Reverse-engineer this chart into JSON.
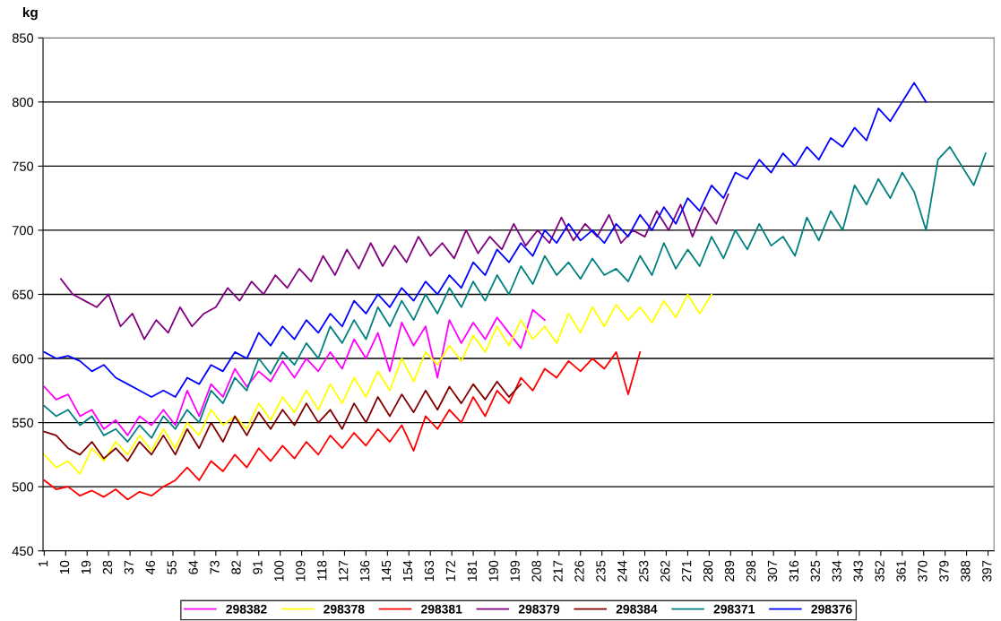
{
  "chart_data": {
    "type": "line",
    "ylabel": "kg",
    "xlim": [
      0.5,
      399.5
    ],
    "xticks": [
      1,
      10,
      19,
      28,
      37,
      46,
      55,
      64,
      73,
      82,
      91,
      100,
      109,
      118,
      127,
      136,
      145,
      154,
      163,
      172,
      181,
      190,
      199,
      208,
      217,
      226,
      235,
      244,
      253,
      262,
      271,
      280,
      289,
      298,
      307,
      316,
      325,
      334,
      343,
      352,
      361,
      370,
      379,
      388,
      397
    ],
    "ylim": [
      450,
      850
    ],
    "yticks": [
      450,
      500,
      550,
      600,
      650,
      700,
      750,
      800,
      850
    ],
    "grid": "y",
    "legend": "bottom",
    "marker": "none",
    "line_style": "solid",
    "series": [
      {
        "name": "298382",
        "color": "#ff00ff",
        "x": [
          1,
          6,
          11,
          16,
          21,
          26,
          31,
          36,
          41,
          46,
          51,
          56,
          61,
          66,
          71,
          76,
          81,
          86,
          91,
          96,
          101,
          106,
          111,
          116,
          121,
          126,
          131,
          136,
          141,
          146,
          151,
          156,
          161,
          166,
          171,
          176,
          181,
          186,
          191,
          196,
          201,
          206,
          211
        ],
        "values": [
          578,
          568,
          572,
          555,
          560,
          545,
          552,
          540,
          555,
          548,
          560,
          548,
          575,
          555,
          580,
          570,
          592,
          578,
          590,
          582,
          598,
          585,
          600,
          590,
          605,
          592,
          615,
          600,
          620,
          590,
          628,
          610,
          625,
          585,
          630,
          612,
          628,
          615,
          632,
          620,
          608,
          638,
          630
        ]
      },
      {
        "name": "298378",
        "color": "#ffff00",
        "x": [
          1,
          6,
          11,
          16,
          21,
          26,
          31,
          36,
          41,
          46,
          51,
          56,
          61,
          66,
          71,
          76,
          81,
          86,
          91,
          96,
          101,
          106,
          111,
          116,
          121,
          126,
          131,
          136,
          141,
          146,
          151,
          156,
          161,
          166,
          171,
          176,
          181,
          186,
          191,
          196,
          201,
          206,
          211,
          216,
          221,
          226,
          231,
          236,
          241,
          246,
          251,
          256,
          261,
          266,
          271,
          276,
          281
        ],
        "values": [
          525,
          515,
          520,
          510,
          530,
          520,
          535,
          525,
          540,
          528,
          545,
          530,
          550,
          540,
          560,
          548,
          555,
          545,
          565,
          552,
          570,
          558,
          575,
          560,
          580,
          565,
          585,
          570,
          590,
          575,
          600,
          582,
          605,
          595,
          610,
          598,
          618,
          605,
          625,
          610,
          630,
          615,
          625,
          612,
          635,
          620,
          640,
          625,
          642,
          630,
          640,
          628,
          645,
          632,
          650,
          635,
          650
        ]
      },
      {
        "name": "298381",
        "color": "#ff0000",
        "x": [
          1,
          6,
          11,
          16,
          21,
          26,
          31,
          36,
          41,
          46,
          51,
          56,
          61,
          66,
          71,
          76,
          81,
          86,
          91,
          96,
          101,
          106,
          111,
          116,
          121,
          126,
          131,
          136,
          141,
          146,
          151,
          156,
          161,
          166,
          171,
          176,
          181,
          186,
          191,
          196,
          201,
          206,
          211,
          216,
          221,
          226,
          231,
          236,
          241,
          246,
          251
        ],
        "values": [
          505,
          498,
          500,
          493,
          497,
          492,
          498,
          490,
          496,
          493,
          500,
          505,
          515,
          505,
          520,
          512,
          525,
          515,
          530,
          520,
          532,
          522,
          535,
          525,
          540,
          530,
          542,
          532,
          545,
          535,
          548,
          528,
          555,
          545,
          560,
          550,
          570,
          555,
          575,
          565,
          585,
          575,
          592,
          585,
          598,
          590,
          600,
          592,
          605,
          572,
          605
        ]
      },
      {
        "name": "298379",
        "color": "#800080",
        "x": [
          8,
          13,
          18,
          23,
          28,
          33,
          38,
          43,
          48,
          53,
          58,
          63,
          68,
          73,
          78,
          83,
          88,
          93,
          98,
          103,
          108,
          113,
          118,
          123,
          128,
          133,
          138,
          143,
          148,
          153,
          158,
          163,
          168,
          173,
          178,
          183,
          188,
          193,
          198,
          203,
          208,
          213,
          218,
          223,
          228,
          233,
          238,
          243,
          248,
          253,
          258,
          263,
          268,
          273,
          278,
          283,
          288
        ],
        "values": [
          662,
          650,
          645,
          640,
          650,
          625,
          635,
          615,
          630,
          620,
          640,
          625,
          635,
          640,
          655,
          645,
          660,
          650,
          665,
          655,
          670,
          660,
          680,
          665,
          685,
          670,
          690,
          672,
          688,
          675,
          695,
          680,
          690,
          678,
          700,
          682,
          695,
          685,
          705,
          688,
          700,
          690,
          710,
          692,
          705,
          695,
          712,
          690,
          700,
          695,
          715,
          700,
          720,
          695,
          718,
          705,
          728
        ]
      },
      {
        "name": "298384",
        "color": "#800000",
        "x": [
          1,
          6,
          11,
          16,
          21,
          26,
          31,
          36,
          41,
          46,
          51,
          56,
          61,
          66,
          71,
          76,
          81,
          86,
          91,
          96,
          101,
          106,
          111,
          116,
          121,
          126,
          131,
          136,
          141,
          146,
          151,
          156,
          161,
          166,
          171,
          176,
          181,
          186,
          191,
          196,
          201
        ],
        "values": [
          543,
          540,
          530,
          525,
          535,
          522,
          530,
          520,
          535,
          525,
          540,
          525,
          545,
          530,
          550,
          535,
          555,
          540,
          558,
          545,
          560,
          548,
          565,
          550,
          560,
          545,
          565,
          550,
          570,
          555,
          572,
          558,
          575,
          560,
          578,
          565,
          580,
          568,
          582,
          570,
          580
        ]
      },
      {
        "name": "298371",
        "color": "#008080",
        "x": [
          1,
          6,
          11,
          16,
          21,
          26,
          31,
          36,
          41,
          46,
          51,
          56,
          61,
          66,
          71,
          76,
          81,
          86,
          91,
          96,
          101,
          106,
          111,
          116,
          121,
          126,
          131,
          136,
          141,
          146,
          151,
          156,
          161,
          166,
          171,
          176,
          181,
          186,
          191,
          196,
          201,
          206,
          211,
          216,
          221,
          226,
          231,
          236,
          241,
          246,
          251,
          256,
          261,
          266,
          271,
          276,
          281,
          286,
          291,
          296,
          301,
          306,
          311,
          316,
          321,
          326,
          331,
          336,
          341,
          346,
          351,
          356,
          361,
          366,
          371,
          376,
          381,
          386,
          391,
          396
        ],
        "values": [
          563,
          555,
          560,
          548,
          555,
          540,
          545,
          535,
          548,
          538,
          555,
          545,
          560,
          550,
          575,
          565,
          585,
          575,
          600,
          588,
          605,
          595,
          612,
          600,
          625,
          612,
          630,
          615,
          640,
          625,
          645,
          630,
          650,
          635,
          655,
          640,
          660,
          645,
          665,
          650,
          672,
          658,
          680,
          665,
          675,
          662,
          678,
          665,
          670,
          660,
          680,
          665,
          690,
          670,
          685,
          672,
          695,
          678,
          700,
          685,
          705,
          688,
          695,
          680,
          710,
          692,
          715,
          700,
          735,
          720,
          740,
          725,
          745,
          730,
          700,
          755,
          765,
          750,
          735,
          760
        ]
      },
      {
        "name": "298376",
        "color": "#0000ff",
        "x": [
          1,
          6,
          11,
          16,
          21,
          26,
          31,
          36,
          41,
          46,
          51,
          56,
          61,
          66,
          71,
          76,
          81,
          86,
          91,
          96,
          101,
          106,
          111,
          116,
          121,
          126,
          131,
          136,
          141,
          146,
          151,
          156,
          161,
          166,
          171,
          176,
          181,
          186,
          191,
          196,
          201,
          206,
          211,
          216,
          221,
          226,
          231,
          236,
          241,
          246,
          251,
          256,
          261,
          266,
          271,
          276,
          281,
          286,
          291,
          296,
          301,
          306,
          311,
          316,
          321,
          326,
          331,
          336,
          341,
          346,
          351,
          356,
          361,
          366,
          371
        ],
        "values": [
          605,
          600,
          602,
          598,
          590,
          595,
          585,
          580,
          575,
          570,
          575,
          570,
          585,
          580,
          595,
          590,
          605,
          600,
          620,
          610,
          625,
          615,
          630,
          620,
          635,
          625,
          645,
          635,
          650,
          640,
          655,
          645,
          660,
          650,
          665,
          655,
          675,
          665,
          685,
          675,
          690,
          680,
          700,
          690,
          705,
          692,
          700,
          690,
          705,
          695,
          712,
          700,
          718,
          705,
          725,
          715,
          735,
          725,
          745,
          740,
          755,
          745,
          760,
          750,
          765,
          755,
          772,
          765,
          780,
          770,
          795,
          785,
          800,
          815,
          800
        ]
      }
    ]
  }
}
